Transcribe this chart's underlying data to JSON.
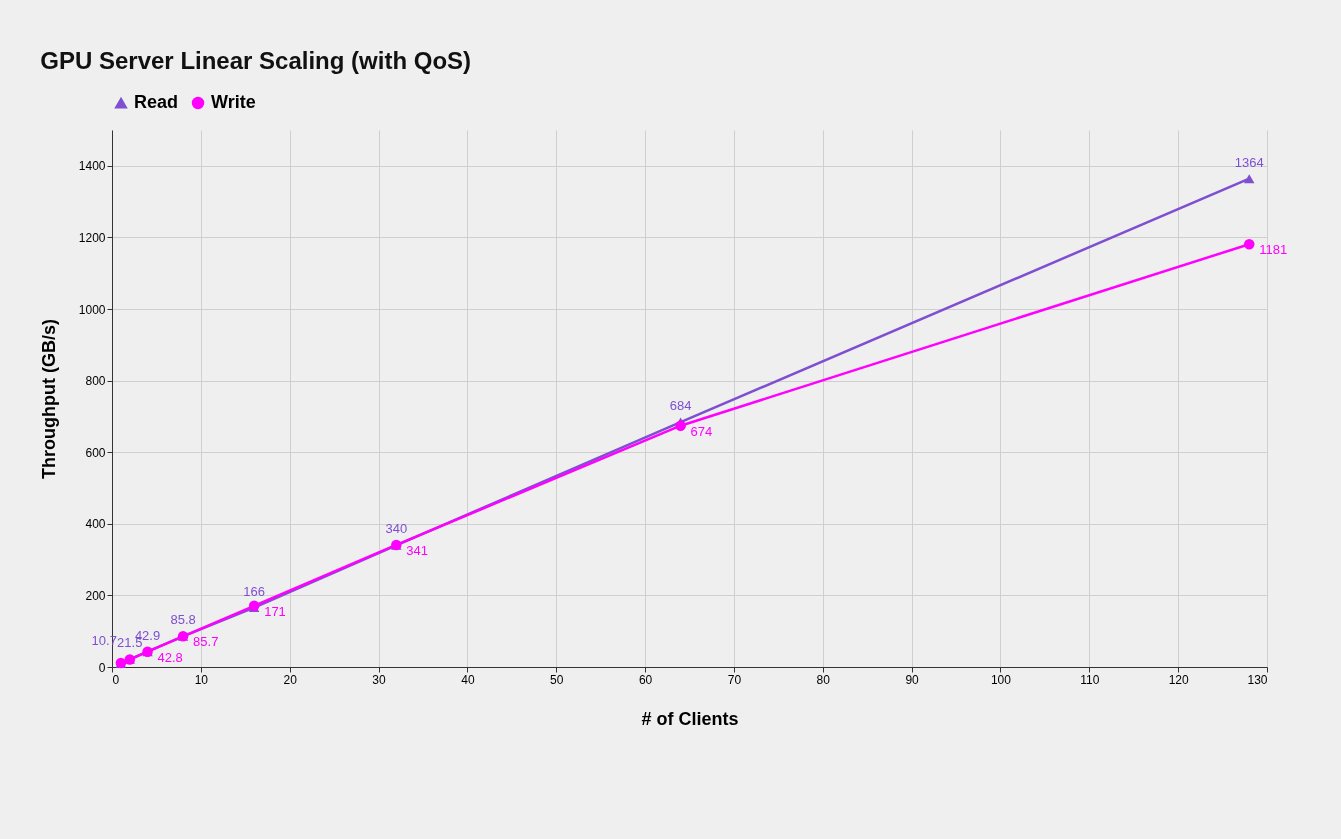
{
  "chart_data": {
    "type": "line",
    "title": "GPU Server Linear Scaling (with QoS)",
    "xlabel": "# of Clients",
    "ylabel": "Throughput (GB/s)",
    "x": [
      1,
      2,
      4,
      8,
      16,
      32,
      64,
      128
    ],
    "series": [
      {
        "name": "Read",
        "color": "#7e4fd0",
        "marker": "triangle",
        "values": [
          10.7,
          21.5,
          42.9,
          85.8,
          166,
          340,
          684,
          1364
        ],
        "value_labels": [
          "10.7",
          "21.5",
          "42.9",
          "85.8",
          "166",
          "340",
          "684",
          "1364"
        ]
      },
      {
        "name": "Write",
        "color": "#ff00ff",
        "marker": "circle",
        "values": [
          11,
          21,
          42.8,
          85.7,
          171,
          341,
          674,
          1181
        ],
        "value_labels": [
          null,
          null,
          "42.8",
          "85.7",
          "171",
          "341",
          "674",
          "1181"
        ]
      }
    ],
    "xlim": [
      0,
      130
    ],
    "xticks": [
      0,
      10,
      20,
      30,
      40,
      50,
      60,
      70,
      80,
      90,
      100,
      110,
      120,
      130
    ],
    "ylim": [
      0,
      1500
    ],
    "yticks": [
      0,
      200,
      400,
      600,
      800,
      1000,
      1200,
      1400
    ],
    "grid": true,
    "legend": "top"
  }
}
